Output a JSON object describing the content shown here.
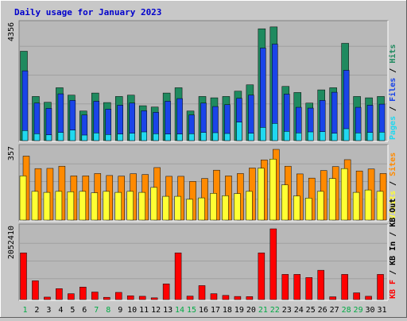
{
  "chart_data": {
    "type": "bar",
    "title": "Daily usage for January 2023",
    "categories": [
      "1",
      "2",
      "3",
      "4",
      "5",
      "6",
      "7",
      "8",
      "9",
      "10",
      "11",
      "12",
      "13",
      "14",
      "15",
      "16",
      "17",
      "18",
      "19",
      "20",
      "21",
      "22",
      "23",
      "24",
      "25",
      "26",
      "27",
      "28",
      "29",
      "30",
      "31"
    ],
    "weekend_days": [
      "1",
      "7",
      "8",
      "14",
      "15",
      "21",
      "22",
      "28",
      "29"
    ],
    "panels": [
      {
        "id": "top",
        "ymax_label": "4356",
        "ymax": 4356,
        "right_labels": [
          "Pages",
          "Files",
          "Hits"
        ],
        "series": [
          {
            "name": "Hits",
            "color": "#1f8a5f",
            "values": [
              3380,
              1670,
              1450,
              2000,
              1720,
              1120,
              1800,
              1440,
              1670,
              1720,
              1320,
              1270,
              1800,
              2000,
              1120,
              1670,
              1620,
              1670,
              1870,
              2110,
              4230,
              4300,
              2050,
              1820,
              1420,
              1920,
              2000,
              3680,
              1670,
              1620,
              1670
            ]
          },
          {
            "name": "Files",
            "color": "#1a44e8",
            "values": [
              2640,
              1420,
              1220,
              1770,
              1520,
              970,
              1490,
              1190,
              1340,
              1420,
              1130,
              1070,
              1490,
              1590,
              970,
              1420,
              1290,
              1360,
              1600,
              1720,
              3500,
              3650,
              1760,
              1260,
              1230,
              1520,
              1830,
              2660,
              1260,
              1340,
              1380
            ]
          },
          {
            "name": "Pages",
            "color": "#20d8f0",
            "values": [
              380,
              260,
              220,
              310,
              400,
              210,
              290,
              230,
              250,
              280,
              330,
              260,
              250,
              250,
              260,
              310,
              300,
              270,
              700,
              280,
              500,
              650,
              350,
              290,
              330,
              340,
              280,
              450,
              290,
              310,
              320
            ]
          }
        ]
      },
      {
        "id": "middle",
        "ymax_label": "357",
        "ymax": 357,
        "right_labels": [
          "Visits",
          "Sites"
        ],
        "series": [
          {
            "name": "Sites",
            "color": "#ff8a00",
            "values": [
              323,
              260,
              261,
              272,
              223,
              223,
              235,
              225,
              222,
              234,
              230,
              265,
              221,
              221,
              195,
              210,
              252,
              223,
              235,
              263,
              304,
              357,
              272,
              233,
              212,
              250,
              270,
              305,
              248,
              258,
              235
            ]
          },
          {
            "name": "Visits",
            "color": "#ffff33",
            "values": [
              223,
              145,
              140,
              145,
              143,
              145,
              138,
              145,
              140,
              145,
              140,
              165,
              120,
              120,
              105,
              112,
              135,
              123,
              134,
              145,
              262,
              308,
              178,
              122,
              111,
              145,
              210,
              260,
              140,
              152,
              145
            ]
          }
        ]
      },
      {
        "id": "bottom",
        "ymax_label": "2052410",
        "ymax": 2052410,
        "right_labels": [
          "KB F",
          "KB In",
          "KB Out"
        ],
        "series": [
          {
            "name": "KB F",
            "color": "#ff0000",
            "values": [
              1355000,
              545000,
              71000,
              317000,
              170000,
              363000,
              218000,
              65000,
              208000,
              110000,
              95000,
              50000,
              455000,
              1355000,
              100000,
              405000,
              170000,
              120000,
              90000,
              86000,
              1355000,
              2052410,
              730000,
              730000,
              640000,
              850000,
              80000,
              730000,
              195000,
              95000,
              730000
            ]
          }
        ]
      }
    ]
  }
}
